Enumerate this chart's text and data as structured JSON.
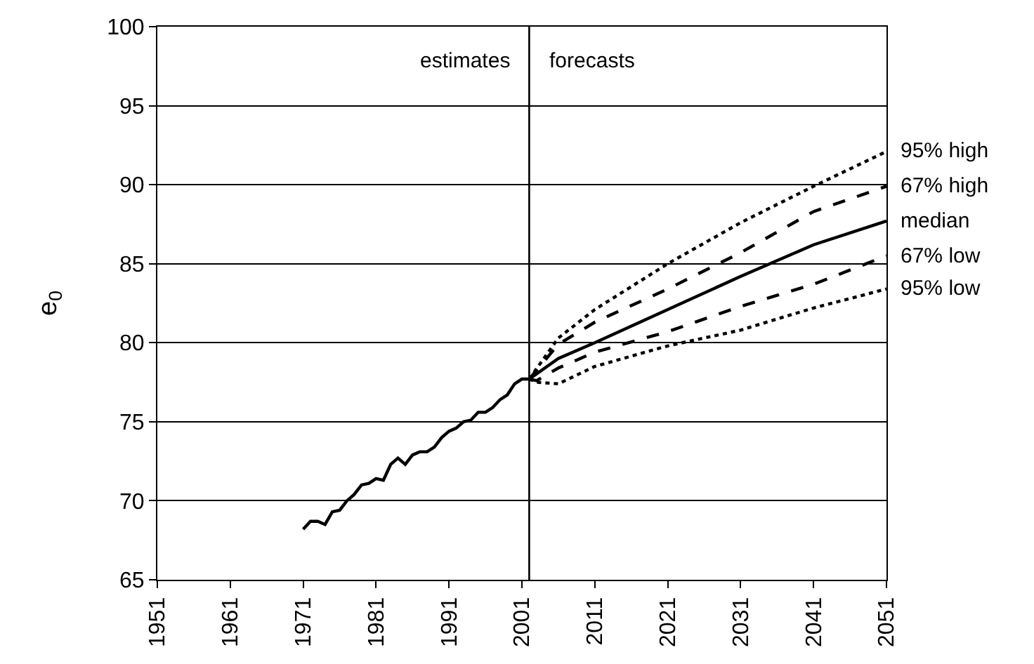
{
  "chart_data": {
    "type": "line",
    "ylabel": "e$_{0}$",
    "x": [
      1971,
      1972,
      1973,
      1974,
      1975,
      1976,
      1977,
      1978,
      1979,
      1980,
      1981,
      1982,
      1983,
      1984,
      1985,
      1986,
      1987,
      1988,
      1989,
      1990,
      1991,
      1992,
      1993,
      1994,
      1995,
      1996,
      1997,
      1998,
      1999,
      2000,
      2001,
      2002
    ],
    "series": [
      {
        "color": "#000000",
        "line_style": "solid",
        "values": [
          68.2,
          68.7,
          68.7,
          68.5,
          69.3,
          69.4,
          70.0,
          70.4,
          71.0,
          71.1,
          71.4,
          71.3,
          72.3,
          72.7,
          72.3,
          72.9,
          73.1,
          73.1,
          73.4,
          74.0,
          74.4,
          74.6,
          75.0,
          75.1,
          75.6,
          75.6,
          75.9,
          76.4,
          76.7,
          77.4,
          77.7,
          77.7
        ]
      },
      {
        "name": "95% high",
        "color": "#000000",
        "line_style": "dotted",
        "x": [
          2002,
          2006,
          2011,
          2021,
          2031,
          2041,
          2051
        ],
        "values": [
          77.7,
          80.3,
          82.1,
          85.0,
          87.6,
          89.9,
          92.1
        ]
      },
      {
        "name": "67% high",
        "color": "#000000",
        "line_style": "dashed",
        "x": [
          2002,
          2006,
          2011,
          2021,
          2031,
          2041,
          2051
        ],
        "values": [
          77.7,
          79.9,
          81.3,
          83.4,
          85.7,
          88.3,
          89.9
        ]
      },
      {
        "name": "median",
        "color": "#000000",
        "line_style": "solid",
        "x": [
          2002,
          2006,
          2011,
          2021,
          2031,
          2041,
          2051
        ],
        "values": [
          77.7,
          79.0,
          80.0,
          82.1,
          84.2,
          86.2,
          87.7
        ]
      },
      {
        "name": "67% low",
        "color": "#000000",
        "line_style": "dashed",
        "x": [
          2002,
          2003,
          2006,
          2011,
          2021,
          2031,
          2041,
          2051
        ],
        "values": [
          77.7,
          77.6,
          78.4,
          79.4,
          80.7,
          82.3,
          83.7,
          85.5
        ]
      },
      {
        "name": "95% low",
        "color": "#000000",
        "line_style": "dotted",
        "x": [
          2002,
          2003,
          2006,
          2011,
          2021,
          2031,
          2041,
          2051
        ],
        "values": [
          77.7,
          77.5,
          77.4,
          78.5,
          79.8,
          80.8,
          82.2,
          83.4
        ]
      }
    ],
    "xlim": [
      1951,
      2051
    ],
    "xticks": [
      1951,
      1961,
      1971,
      1981,
      1991,
      2001,
      2011,
      2021,
      2031,
      2041,
      2051
    ],
    "ylim": [
      65,
      100
    ],
    "yticks": [
      65,
      70,
      75,
      80,
      85,
      90,
      95,
      100
    ],
    "ref_lines": [
      {
        "axis": "x",
        "value": 2002,
        "color": "#000000"
      }
    ],
    "annotations": [
      "estimates",
      "forecasts"
    ],
    "grid": "y",
    "legend": false
  }
}
